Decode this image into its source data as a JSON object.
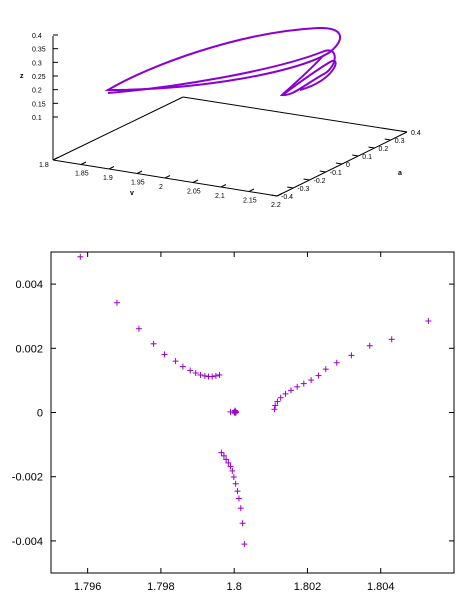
{
  "chart_data": [
    {
      "type": "line",
      "projection": "3d",
      "series_color": "#8a00d4",
      "xlabel": "v",
      "ylabel": "a",
      "zlabel": "z",
      "xlim": [
        1.8,
        2.2
      ],
      "ylim": [
        -0.4,
        0.4
      ],
      "zlim": [
        0.1,
        0.4
      ],
      "x_ticks": [
        "1.8",
        "1.85",
        "1.9",
        "1.95",
        "2",
        "2.05",
        "2.1",
        "2.15",
        "2.2"
      ],
      "y_ticks": [
        "-0.4",
        "-0.3",
        "-0.2",
        "-0.1",
        "0",
        "0.1",
        "0.2",
        "0.3",
        "0.4"
      ],
      "z_ticks": [
        "0.1",
        "0.15",
        "0.2",
        "0.25",
        "0.3",
        "0.35",
        "0.4"
      ],
      "grid": false
    },
    {
      "type": "scatter",
      "marker": "+",
      "marker_color": "#9900cc",
      "xlim": [
        1.795,
        1.806
      ],
      "ylim": [
        -0.005,
        0.005
      ],
      "x_ticks": [
        "1.796",
        "1.798",
        "1.8",
        "1.802",
        "1.804"
      ],
      "y_ticks": [
        "0.004",
        "0.002",
        "0",
        "-0.002",
        "-0.004"
      ],
      "x_tick_values": [
        1.796,
        1.798,
        1.8,
        1.802,
        1.804
      ],
      "y_tick_values": [
        0.004,
        0.002,
        0,
        -0.002,
        -0.004
      ],
      "grid": false,
      "points": [
        [
          1.7958,
          0.00485
        ],
        [
          1.7968,
          0.00342
        ],
        [
          1.7974,
          0.00261
        ],
        [
          1.7978,
          0.00214
        ],
        [
          1.7981,
          0.00181
        ],
        [
          1.7984,
          0.0016
        ],
        [
          1.7986,
          0.00143
        ],
        [
          1.7988,
          0.00131
        ],
        [
          1.79895,
          0.00123
        ],
        [
          1.79908,
          0.00117
        ],
        [
          1.7992,
          0.00114
        ],
        [
          1.7993,
          0.00112
        ],
        [
          1.7994,
          0.00112
        ],
        [
          1.7995,
          0.00114
        ],
        [
          1.7996,
          0.00117
        ],
        [
          1.7999,
          2e-05
        ],
        [
          1.80005,
          0.0
        ],
        [
          1.80002,
          -2e-05
        ],
        [
          1.80004,
          3e-05
        ],
        [
          1.80002,
          6e-05
        ],
        [
          1.8,
          1e-05
        ],
        [
          1.8011,
          0.0001
        ],
        [
          1.80112,
          0.00022
        ],
        [
          1.80118,
          0.00034
        ],
        [
          1.80127,
          0.00046
        ],
        [
          1.8014,
          0.00058
        ],
        [
          1.80155,
          0.00069
        ],
        [
          1.80172,
          0.0008
        ],
        [
          1.8019,
          0.0009
        ],
        [
          1.8021,
          0.00101
        ],
        [
          1.8023,
          0.00115
        ],
        [
          1.8025,
          0.00135
        ],
        [
          1.8028,
          0.00155
        ],
        [
          1.8032,
          0.00178
        ],
        [
          1.8037,
          0.00208
        ],
        [
          1.8043,
          0.00228
        ],
        [
          1.8053,
          0.00285
        ],
        [
          1.79965,
          -0.00125
        ],
        [
          1.79972,
          -0.00135
        ],
        [
          1.79978,
          -0.00146
        ],
        [
          1.79984,
          -0.00157
        ],
        [
          1.7999,
          -0.00168
        ],
        [
          1.79995,
          -0.00182
        ],
        [
          1.79999,
          -0.00201
        ],
        [
          1.80004,
          -0.00222
        ],
        [
          1.80009,
          -0.00245
        ],
        [
          1.80013,
          -0.00268
        ],
        [
          1.80018,
          -0.00298
        ],
        [
          1.80023,
          -0.00345
        ],
        [
          1.80028,
          -0.0041
        ]
      ]
    }
  ]
}
